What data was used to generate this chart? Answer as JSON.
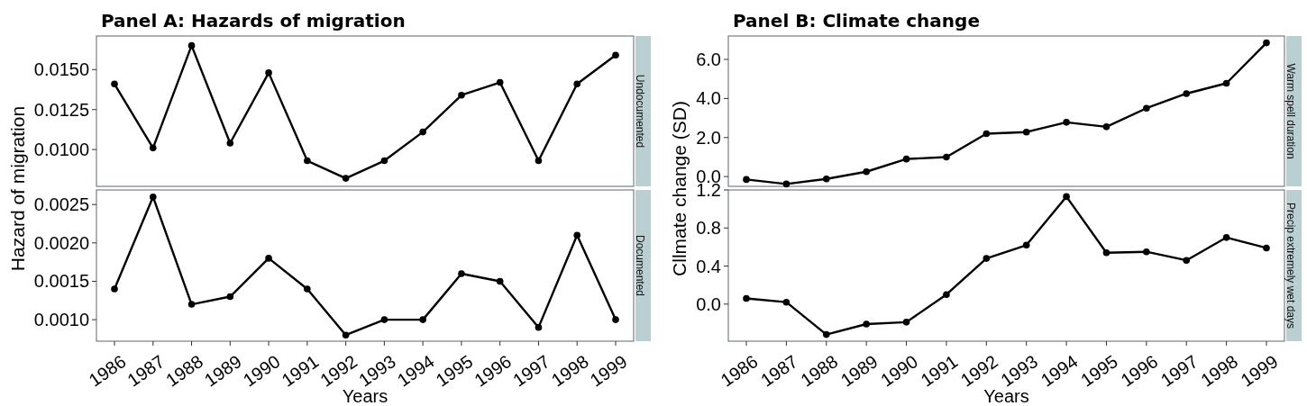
{
  "chart_data": [
    {
      "type": "line",
      "title": "Panel A: Hazards of migration",
      "subtitle": "Undocumented",
      "categories": [
        "1986",
        "1987",
        "1988",
        "1989",
        "1990",
        "1991",
        "1992",
        "1993",
        "1994",
        "1995",
        "1996",
        "1997",
        "1998",
        "1999"
      ],
      "values": [
        0.0141,
        0.0101,
        0.0165,
        0.0104,
        0.0148,
        0.0093,
        0.0082,
        0.0093,
        0.0111,
        0.0134,
        0.0142,
        0.0093,
        0.0141,
        0.0159
      ],
      "color": "#000000",
      "marker": "circle",
      "ylim": [
        0.0077,
        0.0171
      ],
      "yticks": [
        {
          "value": 0.01,
          "label": "0.0100"
        },
        {
          "value": 0.0125,
          "label": "0.0125"
        },
        {
          "value": 0.015,
          "label": "0.0150"
        }
      ],
      "tick_labels": "y"
    },
    {
      "type": "line",
      "subtitle": "Documented",
      "categories": [
        "1986",
        "1987",
        "1988",
        "1989",
        "1990",
        "1991",
        "1992",
        "1993",
        "1994",
        "1995",
        "1996",
        "1997",
        "1998",
        "1999"
      ],
      "values": [
        0.0014,
        0.0026,
        0.0012,
        0.0013,
        0.0018,
        0.0014,
        0.0008,
        0.001,
        0.001,
        0.0016,
        0.0015,
        0.0009,
        0.0021,
        0.001
      ],
      "color": "#000000",
      "marker": "circle",
      "ylim": [
        0.00072,
        0.00269
      ],
      "yticks": [
        {
          "value": 0.001,
          "label": "0.0010"
        },
        {
          "value": 0.0015,
          "label": "0.0015"
        },
        {
          "value": 0.002,
          "label": "0.0020"
        },
        {
          "value": 0.0025,
          "label": "0.0025"
        }
      ],
      "xlabel": "Years",
      "ylabel": "Hazard of migration"
    },
    {
      "type": "line",
      "title": "Panel B: Climate change",
      "subtitle": "Warm spell duration",
      "categories": [
        "1986",
        "1987",
        "1988",
        "1989",
        "1990",
        "1991",
        "1992",
        "1993",
        "1994",
        "1995",
        "1996",
        "1997",
        "1998",
        "1999"
      ],
      "values": [
        -0.15,
        -0.38,
        -0.12,
        0.25,
        0.9,
        1.0,
        2.2,
        2.28,
        2.78,
        2.55,
        3.5,
        4.25,
        4.78,
        6.85
      ],
      "color": "#000000",
      "marker": "circle",
      "ylim": [
        -0.5,
        7.2
      ],
      "yticks": [
        {
          "value": 0,
          "label": "0.0"
        },
        {
          "value": 2,
          "label": "2.0"
        },
        {
          "value": 4,
          "label": "4.0"
        },
        {
          "value": 6,
          "label": "6.0"
        }
      ],
      "tick_labels": "y"
    },
    {
      "type": "line",
      "subtitle": "Precip extremely wet days",
      "categories": [
        "1986",
        "1987",
        "1988",
        "1989",
        "1990",
        "1991",
        "1992",
        "1993",
        "1994",
        "1995",
        "1996",
        "1997",
        "1998",
        "1999"
      ],
      "values": [
        0.06,
        0.02,
        -0.32,
        -0.21,
        -0.19,
        0.1,
        0.48,
        0.62,
        1.13,
        0.54,
        0.55,
        0.46,
        0.7,
        0.59
      ],
      "color": "#000000",
      "marker": "circle",
      "ylim": [
        -0.39,
        1.2
      ],
      "yticks": [
        {
          "value": 0,
          "label": "0.0"
        },
        {
          "value": 0.4,
          "label": "0.4"
        },
        {
          "value": 0.8,
          "label": "0.8"
        },
        {
          "value": 1.2,
          "label": "1.2"
        }
      ],
      "xlabel": "Years",
      "ylabel": "Cllmate change (SD)"
    }
  ]
}
